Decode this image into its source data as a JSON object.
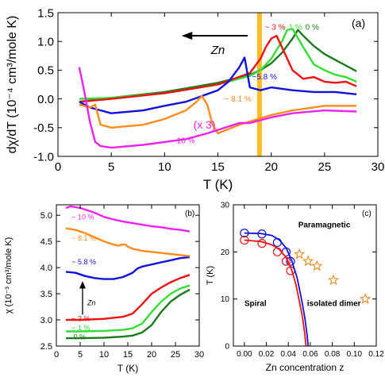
{
  "chart_data": [
    {
      "type": "line",
      "panel_label": "(a)",
      "xlabel": "T (K)",
      "ylabel": "dχ/dT (10⁻⁴ cm³/mole K)",
      "xlim": [
        0,
        30
      ],
      "ylim": [
        -1.0,
        1.5
      ],
      "xticks": [
        "0",
        "5",
        "10",
        "15",
        "20",
        "25",
        "30"
      ],
      "yticks": [
        "-1.0",
        "-0.5",
        "0.0",
        "0.5",
        "1.0",
        "1.5"
      ],
      "grid": false,
      "arrow_label": "Zn",
      "multiplier_label": "(x 3)",
      "highlight_band_x": 18.9,
      "highlight_color": "#FFB000",
      "series": [
        {
          "name": "0 %",
          "color": "#1C7A1C",
          "x": [
            2,
            5,
            10,
            15,
            18,
            19,
            20,
            21,
            22,
            22.5,
            23,
            24,
            25,
            26,
            27,
            28
          ],
          "y": [
            -0.05,
            0.02,
            0.12,
            0.28,
            0.42,
            0.5,
            0.62,
            0.8,
            1.05,
            1.2,
            1.1,
            0.92,
            0.78,
            0.68,
            0.58,
            0.48
          ]
        },
        {
          "name": "1 %",
          "color": "#33DD33",
          "x": [
            2,
            5,
            10,
            15,
            18,
            19,
            20,
            21,
            21.5,
            22,
            23,
            24,
            25,
            26,
            27,
            28
          ],
          "y": [
            0.0,
            0.02,
            0.1,
            0.25,
            0.4,
            0.5,
            0.7,
            1.0,
            1.2,
            1.22,
            0.9,
            0.6,
            0.5,
            0.42,
            0.38,
            0.3
          ]
        },
        {
          "name": "3 %",
          "color": "#EE1111",
          "x": [
            2,
            5,
            10,
            15,
            18,
            19,
            19.5,
            20,
            20.5,
            21,
            22,
            23,
            24,
            25,
            26,
            27,
            28
          ],
          "y": [
            -0.05,
            0.0,
            0.1,
            0.25,
            0.45,
            0.7,
            0.9,
            1.05,
            1.1,
            0.9,
            0.5,
            0.35,
            0.38,
            0.3,
            0.28,
            0.3,
            0.22
          ]
        },
        {
          "name": "5.8 %",
          "color": "#1111DD",
          "x": [
            2,
            3,
            5,
            8,
            10,
            12,
            15,
            16,
            17,
            17.5,
            18,
            19,
            20,
            22,
            24,
            26,
            28
          ],
          "y": [
            -0.05,
            -0.15,
            -0.25,
            -0.2,
            -0.12,
            -0.05,
            0.15,
            0.3,
            0.55,
            0.72,
            0.2,
            0.15,
            0.2,
            0.15,
            0.12,
            0.12,
            0.08
          ]
        },
        {
          "name": "8.1 %",
          "color": "#FF8C1A",
          "x": [
            2,
            3,
            3.5,
            4,
            5,
            8,
            10,
            12,
            13,
            13.5,
            14,
            14.5,
            15,
            17,
            20,
            22,
            25,
            28
          ],
          "y": [
            -0.1,
            -0.15,
            -0.1,
            -0.45,
            -0.5,
            -0.45,
            -0.35,
            -0.2,
            -0.05,
            0.05,
            -0.1,
            -0.45,
            -0.6,
            -0.45,
            -0.28,
            -0.2,
            -0.12,
            -0.12
          ]
        },
        {
          "name": "10 %",
          "color": "#EE22EE",
          "x": [
            2,
            2.5,
            3,
            3.5,
            4,
            5,
            8,
            10,
            12,
            14,
            16,
            17,
            18,
            20,
            22,
            25,
            28
          ],
          "y": [
            0.55,
            0.1,
            -0.4,
            -0.75,
            -0.82,
            -0.85,
            -0.8,
            -0.75,
            -0.7,
            -0.6,
            -0.48,
            -0.42,
            -0.42,
            -0.32,
            -0.25,
            -0.2,
            -0.22
          ]
        }
      ],
      "annotations": [
        {
          "text": "~ 3 %",
          "x": 19.4,
          "y": 1.2,
          "color": "#EE1111"
        },
        {
          "text": "~ 1 %",
          "x": 21.0,
          "y": 1.2,
          "color": "#33DD33"
        },
        {
          "text": "0 %",
          "x": 23.2,
          "y": 1.2,
          "color": "#1C7A1C"
        },
        {
          "text": "~5.8 %",
          "x": 18.2,
          "y": 0.34,
          "color": "#1111DD"
        },
        {
          "text": "~ 8.1 %",
          "x": 15.6,
          "y": -0.05,
          "color": "#FF8C1A"
        },
        {
          "text": "~ 10 %",
          "x": 10.5,
          "y": -0.77,
          "color": "#EE22EE"
        }
      ]
    },
    {
      "type": "line",
      "panel_label": "(b)",
      "xlabel": "T (K)",
      "ylabel": "χ (10⁻³ cm³/mole K)",
      "xlim": [
        0,
        30
      ],
      "ylim": [
        2.5,
        5.2
      ],
      "xticks": [
        "0",
        "5",
        "10",
        "15",
        "20",
        "25",
        "30"
      ],
      "yticks": [
        "2.5",
        "3.0",
        "3.5",
        "4.0",
        "4.5",
        "5.0"
      ],
      "arrow_label": "Zn",
      "series": [
        {
          "name": "0 %",
          "color": "#1C7A1C",
          "x": [
            2,
            5,
            10,
            14,
            16,
            18,
            20,
            22,
            24,
            26,
            28
          ],
          "y": [
            2.65,
            2.65,
            2.66,
            2.68,
            2.7,
            2.76,
            2.9,
            3.15,
            3.35,
            3.48,
            3.58
          ]
        },
        {
          "name": "1 %",
          "color": "#33DD33",
          "x": [
            2,
            5,
            10,
            14,
            16,
            18,
            20,
            22,
            24,
            26,
            28
          ],
          "y": [
            2.78,
            2.78,
            2.79,
            2.81,
            2.84,
            2.93,
            3.15,
            3.35,
            3.5,
            3.6,
            3.66
          ]
        },
        {
          "name": "3 %",
          "color": "#EE1111",
          "x": [
            2,
            5,
            10,
            14,
            16,
            18,
            20,
            22,
            24,
            26,
            28
          ],
          "y": [
            3.0,
            3.0,
            3.02,
            3.06,
            3.12,
            3.3,
            3.5,
            3.62,
            3.72,
            3.8,
            3.86
          ]
        },
        {
          "name": "5.8 %",
          "color": "#1111DD",
          "x": [
            2,
            4,
            6,
            8,
            10,
            12,
            14,
            16,
            17,
            18,
            20,
            22,
            24,
            26,
            28
          ],
          "y": [
            3.92,
            3.9,
            3.84,
            3.8,
            3.78,
            3.78,
            3.82,
            3.9,
            3.98,
            4.02,
            4.06,
            4.1,
            4.14,
            4.18,
            4.2
          ]
        },
        {
          "name": "8.1 %",
          "color": "#FF8C1A",
          "x": [
            2,
            4,
            6,
            8,
            10,
            12,
            13,
            14,
            14.5,
            15,
            16,
            18,
            20,
            22,
            24,
            26,
            28
          ],
          "y": [
            4.75,
            4.72,
            4.66,
            4.58,
            4.5,
            4.44,
            4.42,
            4.44,
            4.44,
            4.4,
            4.36,
            4.32,
            4.3,
            4.28,
            4.26,
            4.24,
            4.22
          ]
        },
        {
          "name": "10 %",
          "color": "#EE22EE",
          "x": [
            2,
            3,
            5,
            8,
            10,
            12,
            14,
            16,
            18,
            20,
            22,
            24,
            26,
            28
          ],
          "y": [
            5.14,
            5.17,
            5.14,
            5.05,
            4.97,
            4.92,
            4.88,
            4.85,
            4.82,
            4.79,
            4.77,
            4.74,
            4.72,
            4.69
          ]
        }
      ],
      "annotations": [
        {
          "text": "~ 10 %",
          "x": 3.2,
          "y": 4.92,
          "color": "#EE22EE"
        },
        {
          "text": "~ 8.1 %",
          "x": 3.2,
          "y": 4.52,
          "color": "#FF8C1A"
        },
        {
          "text": "~ 5.8 %",
          "x": 3.2,
          "y": 4.06,
          "color": "#1111DD"
        },
        {
          "text": "~ 3 %",
          "x": 3.2,
          "y": 2.98,
          "color": "#EE1111"
        },
        {
          "text": "~ 1 %",
          "x": 3.2,
          "y": 2.8,
          "color": "#33DD33"
        },
        {
          "text": "0 %",
          "x": 3.6,
          "y": 2.63,
          "color": "#1C7A1C"
        }
      ]
    },
    {
      "type": "scatter",
      "panel_label": "(c)",
      "xlabel": "Zn concentration z",
      "ylabel": "T (K)",
      "xlim": [
        -0.01,
        0.12
      ],
      "ylim": [
        0,
        30
      ],
      "xticks": [
        "0.00",
        "0.02",
        "0.04",
        "0.06",
        "0.08",
        "0.10",
        "0.12"
      ],
      "yticks": [
        "0",
        "10",
        "20",
        "30"
      ],
      "region_labels": [
        "Paramagnetic",
        "Spiral",
        "isolated dimer"
      ],
      "series": [
        {
          "name": "blue circles",
          "color": "#1111DD",
          "marker": "circle",
          "x": [
            0.0,
            0.016,
            0.03,
            0.038,
            0.042
          ],
          "y": [
            24.0,
            23.8,
            22.0,
            20.0,
            18.0
          ]
        },
        {
          "name": "red circles",
          "color": "#EE1111",
          "marker": "circle",
          "x": [
            0.0,
            0.016,
            0.03,
            0.038,
            0.042
          ],
          "y": [
            22.5,
            21.8,
            20.0,
            18.0,
            16.0
          ]
        },
        {
          "name": "orange stars",
          "color": "#EE8822",
          "marker": "star",
          "x": [
            0.05,
            0.058,
            0.066,
            0.081,
            0.11
          ],
          "y": [
            19.5,
            18.0,
            17.0,
            14.0,
            10.0
          ]
        },
        {
          "name": "blue curve",
          "color": "#1111DD",
          "marker": "none",
          "x": [
            0.0,
            0.015,
            0.025,
            0.032,
            0.038,
            0.043,
            0.048,
            0.052,
            0.055,
            0.057,
            0.058
          ],
          "y": [
            24.0,
            23.9,
            23.5,
            22.5,
            20.8,
            18.2,
            14.5,
            10.0,
            6.0,
            2.5,
            0.0
          ]
        },
        {
          "name": "red curve",
          "color": "#EE1111",
          "marker": "none",
          "x": [
            0.0,
            0.015,
            0.025,
            0.032,
            0.038,
            0.043,
            0.047,
            0.05,
            0.053,
            0.055,
            0.056
          ],
          "y": [
            22.5,
            22.2,
            21.5,
            20.5,
            18.8,
            16.2,
            13.0,
            9.5,
            6.0,
            2.5,
            0.0
          ]
        }
      ]
    }
  ]
}
